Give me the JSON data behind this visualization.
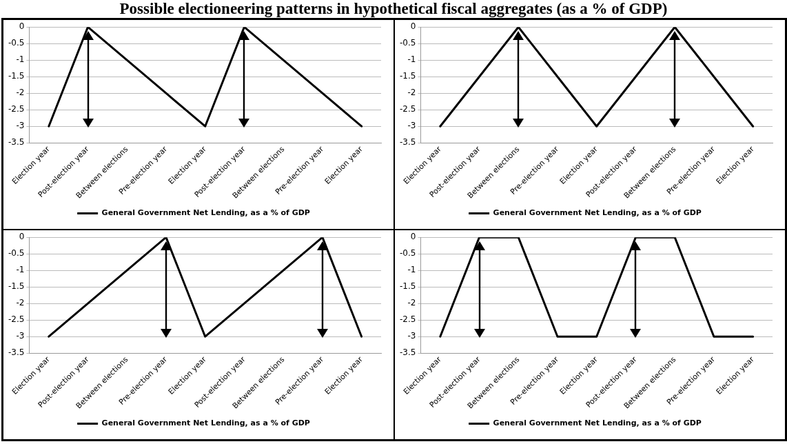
{
  "chart_data": [
    {
      "type": "line",
      "title": "Possible electioneering patterns in hypothetical fiscal aggregates (as a % of GDP)",
      "categories": [
        "Election year",
        "Post-election year",
        "Between elections",
        "Pre-election year",
        "Election year",
        "Post-election year",
        "Between elections",
        "Pre-election year",
        "Election year"
      ],
      "series": [
        {
          "name": "General Government Net Lending, as a % of GDP",
          "color": "#000000",
          "values": [
            -3,
            0,
            -1,
            -2,
            -3,
            0,
            -1,
            -2,
            -3
          ]
        }
      ],
      "ylim": [
        -3.5,
        0
      ],
      "yticks": [
        0,
        -0.5,
        -1,
        -1.5,
        -2,
        -2.5,
        -3,
        -3.5
      ],
      "grid": "y",
      "legend": "bottom",
      "marker": "none",
      "line_style": "solid"
    },
    {
      "type": "line",
      "categories": [
        "Election year",
        "Post-election year",
        "Between elections",
        "Pre-election year",
        "Election year",
        "Post-election year",
        "Between elections",
        "Pre-election year",
        "Election year"
      ],
      "series": [
        {
          "name": "General Government Net Lending, as a % of GDP",
          "color": "#000000",
          "values": [
            -3,
            -1.5,
            0,
            -1.5,
            -3,
            -1.5,
            0,
            -1.5,
            -3
          ]
        }
      ],
      "ylim": [
        -3.5,
        0
      ],
      "yticks": [
        0,
        -0.5,
        -1,
        -1.5,
        -2,
        -2.5,
        -3,
        -3.5
      ],
      "grid": "y",
      "legend": "bottom",
      "marker": "none",
      "line_style": "solid"
    },
    {
      "type": "line",
      "categories": [
        "Election year",
        "Post-election year",
        "Between elections",
        "Pre-election year",
        "Election year",
        "Post-election year",
        "Between elections",
        "Pre-election year",
        "Election year"
      ],
      "series": [
        {
          "name": "General Government Net Lending, as a % of GDP",
          "color": "#000000",
          "values": [
            -3,
            -2,
            -1,
            0,
            -3,
            -2,
            -1,
            0,
            -3
          ]
        }
      ],
      "ylim": [
        -3.5,
        0
      ],
      "yticks": [
        0,
        -0.5,
        -1,
        -1.5,
        -2,
        -2.5,
        -3,
        -3.5
      ],
      "grid": "y",
      "legend": "bottom",
      "marker": "none",
      "line_style": "solid"
    },
    {
      "type": "line",
      "categories": [
        "Election year",
        "Post-election year",
        "Between elections",
        "Pre-election year",
        "Election year",
        "Post-election year",
        "Between elections",
        "Pre-election year",
        "Election year"
      ],
      "series": [
        {
          "name": "General Government Net Lending, as a % of GDP",
          "color": "#000000",
          "values": [
            -3,
            0,
            0,
            -3,
            -3,
            0,
            0,
            -3,
            -3
          ]
        }
      ],
      "ylim": [
        -3.5,
        0
      ],
      "yticks": [
        0,
        -0.5,
        -1,
        -1.5,
        -2,
        -2.5,
        -3,
        -3.5
      ],
      "grid": "y",
      "legend": "bottom",
      "marker": "none",
      "line_style": "solid"
    }
  ]
}
